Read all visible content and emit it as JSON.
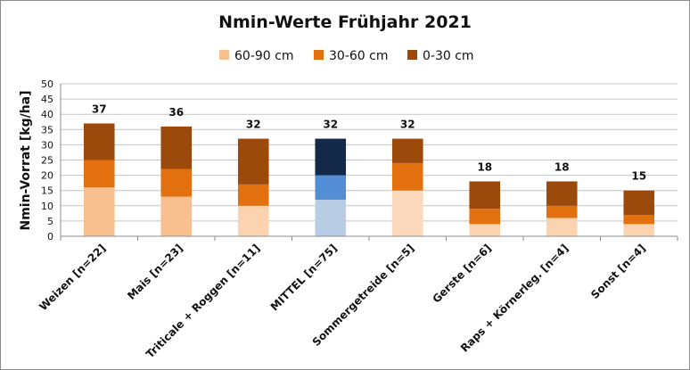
{
  "chart_data": {
    "type": "bar",
    "stacked": true,
    "title": "Nmin-Werte Frühjahr 2021",
    "xlabel": "",
    "ylabel": "Nmin-Vorrat [kg/ha]",
    "ylim": [
      0,
      50
    ],
    "yticks": [
      0,
      5,
      10,
      15,
      20,
      25,
      30,
      35,
      40,
      45,
      50
    ],
    "grid": true,
    "legend_position": "top",
    "categories": [
      "Weizen [n=22]",
      "Mais [n=23]",
      "Triticale + Roggen [n=11]",
      "MITTEL [n=75]",
      "Sommergetreide [n=5]",
      "Gerste [n=6]",
      "Raps + Körnerleg. [n=4]",
      "Sonst [n=4]"
    ],
    "series": [
      {
        "name": "60-90 cm",
        "values": [
          16,
          13,
          10,
          12,
          15,
          4,
          6,
          4
        ]
      },
      {
        "name": "30-60 cm",
        "values": [
          9,
          9,
          7,
          8,
          9,
          5,
          4,
          3
        ]
      },
      {
        "name": "0-30 cm",
        "values": [
          12,
          14,
          15,
          12,
          8,
          9,
          8,
          8
        ]
      }
    ],
    "totals": [
      "37",
      "36",
      "32",
      "32",
      "32",
      "18",
      "18",
      "15"
    ],
    "highlight_index": 3
  },
  "colors": {
    "series": [
      "#f9c08f",
      "#e3700f",
      "#9c4a0b"
    ],
    "bar_overrides": {
      "2": [
        "#fbd3b0",
        "#e3700f",
        "#9c4a0b"
      ],
      "3": [
        "#b8cce4",
        "#538ed5",
        "#14284a"
      ],
      "4": [
        "#fcd8bd",
        "#e3700f",
        "#9c4a0b"
      ],
      "5": [
        "#fbd3b0",
        "#e3700f",
        "#9c4a0b"
      ],
      "6": [
        "#fbd3b0",
        "#e3700f",
        "#9c4a0b"
      ],
      "7": [
        "#fbd3b0",
        "#e3700f",
        "#9c4a0b"
      ]
    },
    "grid": "#c4c4c4",
    "axis": "#8c8c8c"
  }
}
